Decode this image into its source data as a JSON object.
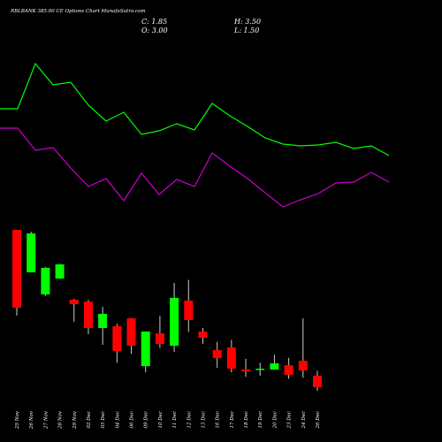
{
  "chart_data": [
    {
      "type": "line",
      "ylim": [
        0,
        250
      ],
      "series": [
        {
          "color": "#00ff00",
          "values": [
            127,
            127,
            178,
            154,
            157,
            131,
            113,
            123,
            98,
            102,
            110,
            103,
            133,
            119,
            107,
            94,
            87,
            85,
            86,
            89,
            82,
            85,
            74
          ]
        },
        {
          "color": "#cc00cc",
          "values": [
            105,
            105,
            80,
            83,
            60,
            39,
            48,
            23,
            54,
            30,
            47,
            39,
            77,
            62,
            48,
            32,
            16,
            24,
            31,
            43,
            44,
            55,
            44
          ]
        }
      ]
    },
    {
      "type": "candlestick",
      "title": "RBLBANK 385.00 CE Options Chart MunafaSutra.com",
      "summary": [
        "C: 1.85",
        "H: 3.50",
        "O: 3.00",
        "L: 1.50"
      ],
      "up_color": "#00ff00",
      "down_color": "#ff0000",
      "ylim": [
        0,
        20
      ],
      "categories": [
        "25 Nov",
        "26 Nov",
        "27 Nov",
        "28 Nov",
        "29 Nov",
        "02 Dec",
        "03 Dec",
        "04 Dec",
        "06 Dec",
        "09 Dec",
        "10 Dec",
        "11 Dec",
        "12 Dec",
        "13 Dec",
        "16 Dec",
        "17 Dec",
        "18 Dec",
        "19 Dec",
        "20 Dec",
        "23 Dec",
        "24 Dec",
        "26 Dec"
      ],
      "open": [
        17.6,
        13.35,
        11.14,
        12.73,
        10.61,
        10.43,
        7.78,
        7.96,
        8.75,
        3.97,
        7.25,
        6.0,
        10.52,
        7.43,
        5.57,
        5.83,
        3.62,
        3.62,
        3.62,
        4.06,
        4.5,
        3.0
      ],
      "high": [
        17.6,
        17.43,
        13.9,
        14.2,
        10.7,
        10.6,
        9.9,
        8.2,
        8.75,
        7.43,
        9.0,
        12.3,
        12.6,
        7.8,
        6.4,
        6.6,
        4.7,
        4.3,
        5.1,
        4.8,
        8.75,
        3.5
      ],
      "low": [
        9.02,
        13.35,
        11.0,
        12.7,
        8.4,
        7.16,
        6.1,
        4.3,
        5.2,
        3.35,
        5.8,
        5.4,
        7.4,
        6.2,
        3.8,
        3.35,
        2.9,
        3.0,
        3.62,
        2.7,
        2.8,
        1.5
      ],
      "close": [
        9.81,
        17.25,
        13.8,
        14.15,
        10.17,
        7.78,
        9.2,
        5.48,
        6.0,
        7.43,
        6.19,
        10.8,
        8.58,
        6.8,
        4.77,
        3.71,
        3.44,
        3.71,
        4.24,
        3.09,
        3.53,
        1.85
      ]
    }
  ]
}
